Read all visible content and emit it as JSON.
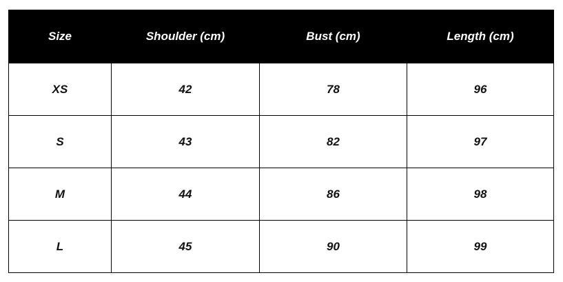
{
  "headers": [
    "Size",
    "Shoulder (cm)",
    "Bust  (cm)",
    "Length  (cm)"
  ],
  "rows": [
    [
      "XS",
      "42",
      "78",
      "96"
    ],
    [
      "S",
      "43",
      "82",
      "97"
    ],
    [
      "M",
      "44",
      "86",
      "98"
    ],
    [
      "L",
      "45",
      "90",
      "99"
    ]
  ]
}
